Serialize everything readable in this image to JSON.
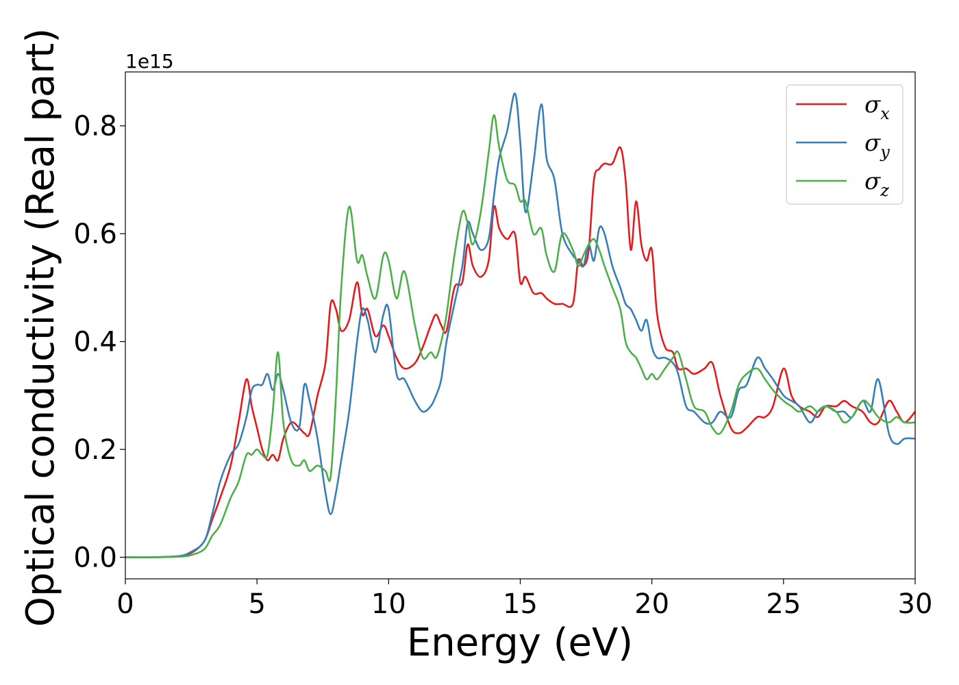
{
  "chart_data": {
    "type": "line",
    "xlabel": "Energy (eV)",
    "ylabel": "Optical conductivity (Real part)",
    "y_offset_text": "1e15",
    "xlim": [
      0,
      30
    ],
    "ylim": [
      -0.04,
      0.9
    ],
    "x_ticks": [
      0,
      5,
      10,
      15,
      20,
      25,
      30
    ],
    "x_tick_labels": [
      "0",
      "5",
      "10",
      "15",
      "20",
      "25",
      "30"
    ],
    "y_ticks": [
      0.0,
      0.2,
      0.4,
      0.6,
      0.8
    ],
    "y_tick_labels": [
      "0.0",
      "0.2",
      "0.4",
      "0.6",
      "0.8"
    ],
    "grid": false,
    "legend_position": "top-right",
    "series": [
      {
        "name": "σ",
        "subscript": "x",
        "color": "#e41a1c",
        "x": [
          0,
          1,
          2,
          2.5,
          3,
          3.3,
          3.6,
          4,
          4.3,
          4.6,
          4.8,
          5,
          5.2,
          5.4,
          5.6,
          5.8,
          6,
          6.3,
          6.6,
          6.8,
          7,
          7.3,
          7.6,
          7.8,
          8,
          8.2,
          8.5,
          8.8,
          9,
          9.2,
          9.5,
          9.8,
          10,
          10.3,
          10.6,
          11,
          11.3,
          11.6,
          11.8,
          12,
          12.2,
          12.5,
          12.8,
          13,
          13.2,
          13.5,
          13.8,
          14,
          14.2,
          14.5,
          14.8,
          15,
          15.2,
          15.5,
          15.8,
          16,
          16.3,
          16.6,
          17,
          17.2,
          17.4,
          17.6,
          17.8,
          18,
          18.2,
          18.5,
          18.8,
          19,
          19.2,
          19.4,
          19.6,
          19.8,
          20,
          20.2,
          20.5,
          20.8,
          21,
          21.3,
          21.6,
          22,
          22.3,
          22.6,
          23,
          23.3,
          23.6,
          24,
          24.3,
          24.6,
          25,
          25.3,
          25.6,
          26,
          26.3,
          26.6,
          27,
          27.3,
          27.6,
          28,
          28.3,
          28.6,
          29,
          29.3,
          29.6,
          30
        ],
        "y": [
          0,
          0,
          0.002,
          0.008,
          0.03,
          0.07,
          0.11,
          0.17,
          0.25,
          0.33,
          0.28,
          0.24,
          0.2,
          0.18,
          0.19,
          0.18,
          0.22,
          0.25,
          0.24,
          0.23,
          0.23,
          0.3,
          0.36,
          0.47,
          0.46,
          0.42,
          0.44,
          0.51,
          0.45,
          0.46,
          0.41,
          0.43,
          0.41,
          0.37,
          0.35,
          0.36,
          0.39,
          0.43,
          0.45,
          0.43,
          0.42,
          0.5,
          0.51,
          0.58,
          0.54,
          0.52,
          0.55,
          0.65,
          0.61,
          0.59,
          0.6,
          0.51,
          0.52,
          0.49,
          0.49,
          0.48,
          0.47,
          0.47,
          0.47,
          0.55,
          0.54,
          0.57,
          0.7,
          0.72,
          0.73,
          0.73,
          0.76,
          0.7,
          0.57,
          0.66,
          0.58,
          0.55,
          0.57,
          0.45,
          0.39,
          0.38,
          0.35,
          0.35,
          0.34,
          0.35,
          0.36,
          0.3,
          0.24,
          0.23,
          0.24,
          0.26,
          0.26,
          0.28,
          0.35,
          0.3,
          0.28,
          0.27,
          0.26,
          0.28,
          0.28,
          0.29,
          0.28,
          0.27,
          0.25,
          0.25,
          0.29,
          0.27,
          0.25,
          0.27
        ]
      },
      {
        "name": "σ",
        "subscript": "y",
        "color": "#377eb8",
        "x": [
          0,
          1,
          2,
          2.5,
          3,
          3.3,
          3.6,
          4,
          4.3,
          4.6,
          4.8,
          5,
          5.2,
          5.4,
          5.6,
          5.8,
          6,
          6.3,
          6.6,
          6.8,
          7,
          7.3,
          7.6,
          7.8,
          8,
          8.2,
          8.5,
          8.8,
          9,
          9.2,
          9.5,
          9.8,
          10,
          10.3,
          10.6,
          11,
          11.3,
          11.6,
          11.8,
          12,
          12.2,
          12.5,
          12.8,
          13,
          13.2,
          13.5,
          13.8,
          14,
          14.2,
          14.5,
          14.8,
          15,
          15.2,
          15.5,
          15.8,
          16,
          16.3,
          16.6,
          17,
          17.2,
          17.4,
          17.6,
          17.8,
          18,
          18.2,
          18.5,
          18.8,
          19,
          19.2,
          19.4,
          19.6,
          19.8,
          20,
          20.2,
          20.5,
          20.8,
          21,
          21.3,
          21.6,
          22,
          22.3,
          22.6,
          23,
          23.3,
          23.6,
          24,
          24.3,
          24.6,
          25,
          25.3,
          25.6,
          26,
          26.3,
          26.6,
          27,
          27.3,
          27.6,
          28,
          28.3,
          28.6,
          29,
          29.3,
          29.6,
          30
        ],
        "y": [
          0,
          0,
          0.002,
          0.01,
          0.03,
          0.08,
          0.14,
          0.19,
          0.21,
          0.26,
          0.31,
          0.32,
          0.32,
          0.34,
          0.31,
          0.34,
          0.31,
          0.25,
          0.24,
          0.32,
          0.29,
          0.22,
          0.12,
          0.08,
          0.12,
          0.18,
          0.27,
          0.4,
          0.46,
          0.44,
          0.38,
          0.45,
          0.46,
          0.34,
          0.33,
          0.29,
          0.27,
          0.28,
          0.3,
          0.33,
          0.4,
          0.47,
          0.54,
          0.62,
          0.6,
          0.57,
          0.59,
          0.67,
          0.74,
          0.79,
          0.86,
          0.77,
          0.64,
          0.73,
          0.84,
          0.74,
          0.7,
          0.6,
          0.56,
          0.55,
          0.54,
          0.58,
          0.55,
          0.61,
          0.6,
          0.54,
          0.5,
          0.47,
          0.46,
          0.44,
          0.42,
          0.44,
          0.39,
          0.37,
          0.37,
          0.36,
          0.34,
          0.28,
          0.27,
          0.25,
          0.25,
          0.27,
          0.26,
          0.31,
          0.32,
          0.37,
          0.35,
          0.33,
          0.3,
          0.29,
          0.28,
          0.25,
          0.27,
          0.28,
          0.27,
          0.27,
          0.26,
          0.29,
          0.27,
          0.33,
          0.23,
          0.21,
          0.22,
          0.22
        ]
      },
      {
        "name": "σ",
        "subscript": "z",
        "color": "#4daf4a",
        "x": [
          0,
          1,
          2,
          2.5,
          3,
          3.3,
          3.6,
          4,
          4.3,
          4.6,
          4.8,
          5,
          5.2,
          5.4,
          5.6,
          5.8,
          6,
          6.3,
          6.6,
          6.8,
          7,
          7.3,
          7.6,
          7.8,
          8,
          8.2,
          8.5,
          8.8,
          9,
          9.2,
          9.5,
          9.8,
          10,
          10.3,
          10.6,
          11,
          11.3,
          11.6,
          11.8,
          12,
          12.2,
          12.5,
          12.8,
          13,
          13.2,
          13.5,
          13.8,
          14,
          14.2,
          14.5,
          14.8,
          15,
          15.2,
          15.5,
          15.8,
          16,
          16.3,
          16.6,
          17,
          17.2,
          17.4,
          17.6,
          17.8,
          18,
          18.2,
          18.5,
          18.8,
          19,
          19.2,
          19.4,
          19.6,
          19.8,
          20,
          20.2,
          20.5,
          20.8,
          21,
          21.3,
          21.6,
          22,
          22.3,
          22.6,
          23,
          23.3,
          23.6,
          24,
          24.3,
          24.6,
          25,
          25.3,
          25.6,
          26,
          26.3,
          26.6,
          27,
          27.3,
          27.6,
          28,
          28.3,
          28.6,
          29,
          29.3,
          29.6,
          30
        ],
        "y": [
          0,
          0,
          0.001,
          0.004,
          0.015,
          0.04,
          0.06,
          0.11,
          0.14,
          0.19,
          0.19,
          0.2,
          0.19,
          0.19,
          0.27,
          0.38,
          0.25,
          0.18,
          0.17,
          0.18,
          0.16,
          0.17,
          0.16,
          0.15,
          0.3,
          0.5,
          0.65,
          0.55,
          0.56,
          0.52,
          0.48,
          0.56,
          0.55,
          0.48,
          0.53,
          0.43,
          0.37,
          0.38,
          0.37,
          0.4,
          0.45,
          0.56,
          0.64,
          0.62,
          0.58,
          0.64,
          0.75,
          0.82,
          0.76,
          0.7,
          0.69,
          0.66,
          0.66,
          0.6,
          0.61,
          0.56,
          0.53,
          0.6,
          0.57,
          0.54,
          0.56,
          0.58,
          0.59,
          0.57,
          0.54,
          0.5,
          0.46,
          0.4,
          0.38,
          0.37,
          0.35,
          0.33,
          0.34,
          0.33,
          0.35,
          0.37,
          0.38,
          0.33,
          0.28,
          0.27,
          0.24,
          0.23,
          0.27,
          0.32,
          0.34,
          0.35,
          0.33,
          0.31,
          0.29,
          0.28,
          0.27,
          0.28,
          0.27,
          0.28,
          0.27,
          0.25,
          0.26,
          0.29,
          0.28,
          0.26,
          0.25,
          0.26,
          0.25,
          0.25
        ]
      }
    ]
  }
}
